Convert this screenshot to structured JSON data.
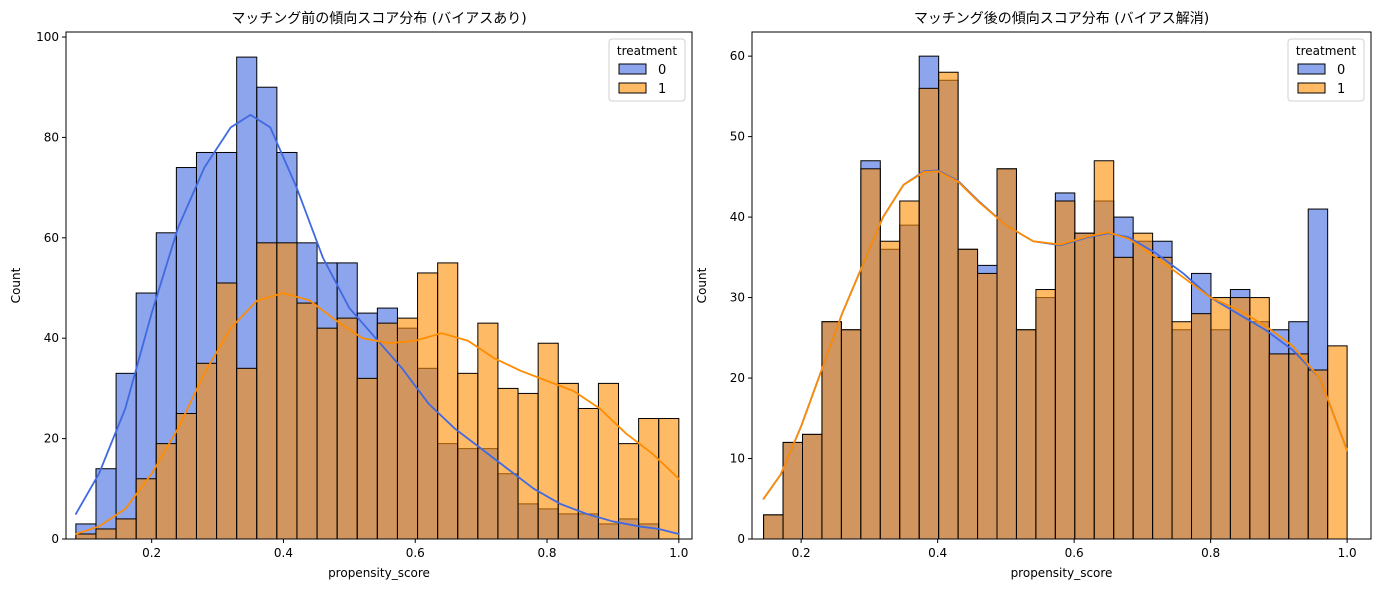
{
  "colors": {
    "treatment_0": "#4169e1",
    "treatment_1": "#ff8c00",
    "overlap": "#8a84a6",
    "kde_0": "#4169e1",
    "kde_1": "#ff8c00"
  },
  "chart_data": [
    {
      "type": "histogram",
      "title": "マッチング前の傾向スコア分布 (バイアスあり)",
      "xlabel": "propensity_score",
      "ylabel": "Count",
      "xlim": [
        0.07,
        1.02
      ],
      "ylim": [
        0,
        101
      ],
      "xticks": [
        "0.2",
        "0.4",
        "0.6",
        "0.8",
        "1.0"
      ],
      "yticks": [
        "0",
        "20",
        "40",
        "60",
        "80",
        "100"
      ],
      "grid": false,
      "legend": {
        "title": "treatment",
        "position": "top-right",
        "entries": [
          "0",
          "1"
        ]
      },
      "bin_edges": [
        0.085,
        0.1155,
        0.146,
        0.1765,
        0.207,
        0.2375,
        0.268,
        0.2985,
        0.329,
        0.3595,
        0.39,
        0.4205,
        0.451,
        0.4815,
        0.512,
        0.5425,
        0.573,
        0.6035,
        0.634,
        0.6645,
        0.695,
        0.7255,
        0.756,
        0.7865,
        0.817,
        0.8475,
        0.878,
        0.9085,
        0.939,
        0.9695,
        1.0
      ],
      "series": [
        {
          "name": "0",
          "values": [
            3,
            14,
            33,
            49,
            61,
            74,
            77,
            77,
            96,
            90,
            77,
            59,
            55,
            55,
            45,
            46,
            42,
            34,
            19,
            18,
            18,
            13,
            7,
            6,
            5,
            5,
            3,
            4,
            3,
            0
          ]
        },
        {
          "name": "1",
          "values": [
            1,
            2,
            4,
            12,
            19,
            25,
            35,
            51,
            34,
            59,
            59,
            47,
            42,
            44,
            32,
            43,
            44,
            53,
            55,
            33,
            43,
            30,
            29,
            39,
            31,
            26,
            31,
            19,
            24,
            24
          ]
        }
      ],
      "kde": [
        {
          "name": "0",
          "x": [
            0.085,
            0.12,
            0.16,
            0.2,
            0.24,
            0.28,
            0.32,
            0.35,
            0.38,
            0.42,
            0.46,
            0.5,
            0.54,
            0.58,
            0.62,
            0.66,
            0.7,
            0.74,
            0.78,
            0.82,
            0.86,
            0.9,
            0.94,
            0.97,
            1.0
          ],
          "y": [
            5,
            13,
            26,
            45,
            62,
            74,
            82,
            84.5,
            82,
            70,
            56,
            46,
            40,
            34,
            27,
            22,
            18,
            14,
            10,
            7,
            5,
            3.5,
            2.5,
            2,
            1
          ]
        },
        {
          "name": "1",
          "x": [
            0.085,
            0.12,
            0.16,
            0.2,
            0.24,
            0.28,
            0.32,
            0.36,
            0.4,
            0.44,
            0.48,
            0.52,
            0.56,
            0.6,
            0.64,
            0.68,
            0.72,
            0.76,
            0.8,
            0.84,
            0.88,
            0.92,
            0.96,
            1.0
          ],
          "y": [
            1,
            2.5,
            6,
            13,
            22,
            33,
            42,
            47.5,
            49,
            47.5,
            43.5,
            40,
            39,
            39.5,
            41,
            39.5,
            36,
            33.5,
            31.5,
            29.5,
            26,
            21,
            17,
            12
          ]
        }
      ]
    },
    {
      "type": "histogram",
      "title": "マッチング後の傾向スコア分布 (バイアス解消)",
      "xlabel": "propensity_score",
      "ylabel": "Count",
      "xlim": [
        0.128,
        1.035
      ],
      "ylim": [
        0,
        63
      ],
      "xticks": [
        "0.2",
        "0.4",
        "0.6",
        "0.8",
        "1.0"
      ],
      "yticks": [
        "0",
        "10",
        "20",
        "30",
        "40",
        "50",
        "60"
      ],
      "grid": false,
      "legend": {
        "title": "treatment",
        "position": "top-right",
        "entries": [
          "0",
          "1"
        ]
      },
      "bin_edges": [
        0.145,
        0.1735,
        0.202,
        0.2305,
        0.259,
        0.2875,
        0.316,
        0.3445,
        0.373,
        0.4015,
        0.43,
        0.4585,
        0.487,
        0.5155,
        0.544,
        0.5725,
        0.601,
        0.6295,
        0.658,
        0.6865,
        0.715,
        0.7435,
        0.772,
        0.8005,
        0.829,
        0.8575,
        0.886,
        0.9145,
        0.943,
        0.9715,
        1.0
      ],
      "series": [
        {
          "name": "0",
          "values": [
            3,
            12,
            13,
            27,
            26,
            47,
            36,
            39,
            60,
            57,
            36,
            34,
            46,
            26,
            30,
            43,
            38,
            42,
            40,
            37,
            37,
            26,
            33,
            26,
            31,
            27,
            26,
            27,
            41,
            0
          ]
        },
        {
          "name": "1",
          "values": [
            3,
            12,
            13,
            27,
            26,
            46,
            37,
            42,
            56,
            58,
            36,
            33,
            46,
            26,
            31,
            42,
            38,
            47,
            35,
            38,
            35,
            27,
            28,
            30,
            30,
            30,
            23,
            23,
            21,
            24
          ]
        }
      ],
      "kde": [
        {
          "name": "0",
          "x": [
            0.145,
            0.17,
            0.2,
            0.23,
            0.26,
            0.29,
            0.32,
            0.35,
            0.38,
            0.4,
            0.43,
            0.46,
            0.5,
            0.54,
            0.58,
            0.62,
            0.65,
            0.68,
            0.72,
            0.76,
            0.8,
            0.84,
            0.88,
            0.92,
            0.96,
            1.0
          ],
          "y": [
            5,
            8,
            14,
            21,
            28,
            34,
            40,
            44,
            45.7,
            45.8,
            44.5,
            42,
            39,
            37,
            36.5,
            37.5,
            38,
            37.5,
            35.5,
            33,
            30,
            28,
            26,
            23.5,
            20,
            11
          ]
        },
        {
          "name": "1",
          "x": [
            0.145,
            0.17,
            0.2,
            0.23,
            0.26,
            0.29,
            0.32,
            0.35,
            0.38,
            0.4,
            0.43,
            0.46,
            0.5,
            0.54,
            0.58,
            0.62,
            0.65,
            0.68,
            0.72,
            0.76,
            0.8,
            0.84,
            0.88,
            0.92,
            0.96,
            1.0
          ],
          "y": [
            5,
            8,
            14,
            21,
            28,
            34,
            40,
            44,
            45.6,
            45.7,
            44.4,
            41.9,
            39,
            37,
            36.6,
            37.6,
            38.1,
            37.3,
            35,
            32.5,
            30,
            28.5,
            26.5,
            24,
            20,
            11
          ]
        }
      ]
    }
  ]
}
